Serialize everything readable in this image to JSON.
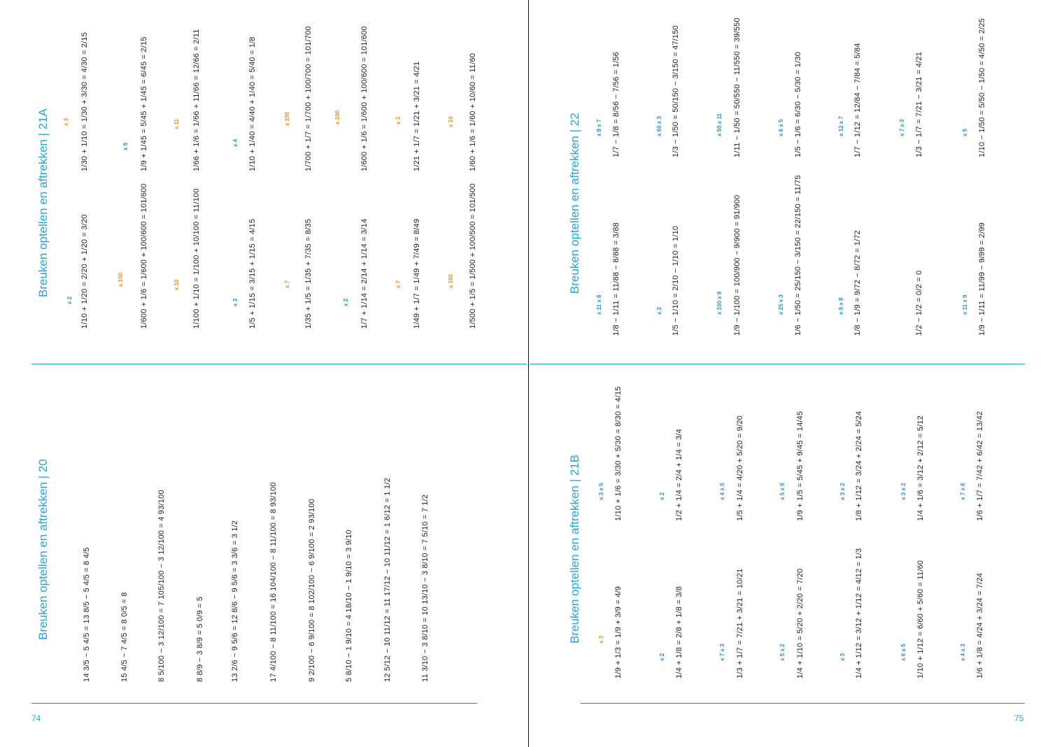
{
  "page_numbers": {
    "left": "74",
    "right": "75"
  },
  "sections": {
    "s21A": {
      "title": "Breuken optellen en aftrekken  |  21A"
    },
    "s20": {
      "title": "Breuken optellen en aftrekken  |  20"
    },
    "s22": {
      "title": "Breuken optellen en aftrekken  |  22"
    },
    "s21B": {
      "title": "Breuken optellen en aftrekken  |  21B"
    }
  },
  "columns": {
    "s21A_top": [
      "1/30 + 1/10 = 1/30 + 3/30 = 4/30 = 2/15",
      "1/9 + 1/45 = 5/45 + 1/45 = 6/45 = 2/15",
      "1/66 + 1/6 = 1/66 + 11/66 = 12/66 = 2/11",
      "1/10 + 1/40 = 4/40 + 1/40 = 5/40 = 1/8",
      "1/700 + 1/7 = 1/700 + 100/700 = 101/700",
      "1/600 + 1/6 = 1/600 + 100/600 = 101/600",
      "1/21 + 1/7 = 1/21 + 3/21 = 4/21",
      "1/60 + 1/6 = 1/60 + 10/60 = 11/60"
    ],
    "s21A_bottom": [
      "1/10 + 1/20 = 2/20 + 1/20 = 3/20",
      "1/600 + 1/6 = 1/600 + 100/600 = 101/600",
      "1/100 + 1/10 = 1/100 + 10/100 = 11/100",
      "1/5 + 1/15 = 3/15 + 1/15 = 4/15",
      "1/35 + 1/5 = 1/35 + 7/35 = 8/35",
      "1/7 + 1/14 = 2/14 + 1/14 = 3/14",
      "1/49 + 1/7 = 1/49 + 7/49 = 8/49",
      "1/500 + 1/5 = 1/500 + 100/500 = 101/500"
    ],
    "s20": [
      "14 3/5 − 5 4/5 = 13 8/5 − 5 4/5 = 8 4/5",
      "15 4/5 − 7 4/5 = 8 0/5 = 8",
      "8 5/100 − 3 12/100 = 7 105/100 − 3 12/100 = 4 93/100",
      "8 8/9 − 3 8/9 = 5 0/9 = 5",
      "13 2/6 − 9 5/6 = 12 8/6 − 9 5/6 = 3 3/6 = 3 1/2",
      "17 4/100 − 8 11/100 = 16 104/100 − 8 11/100 = 8 93/100",
      "9 2/100 − 6 9/100 = 8 102/100 − 6 9/100 = 2 93/100",
      "5 8/10 − 1 9/10 = 4 18/10 − 1 9/10 = 3 9/10",
      "12 5/12 − 10 11/12 = 11 17/12 − 10 11/12 = 1 6/12 = 1 1/2",
      "11 3/10 − 3 8/10 = 10 13/10 − 3 8/10 = 7 5/10 = 7 1/2"
    ],
    "s22_top": [
      "1/7 − 1/8 = 8/56 − 7/56 = 1/56",
      "1/3 − 1/50 = 50/150 − 3/150 = 47/150",
      "1/11 − 1/50 = 50/550 − 11/550 = 39/550",
      "1/5 − 1/6 = 6/30 − 5/30 = 1/30",
      "1/7 − 1/12 = 12/84 − 7/84 = 5/84",
      "1/3 − 1/7 = 7/21 − 3/21 = 4/21",
      "1/10 − 1/50 = 5/50 − 1/50 = 4/50 = 2/25"
    ],
    "s22_bottom": [
      "1/8 − 1/11 = 11/88 − 8/88 = 3/88",
      "1/5 − 1/10 = 2/10 − 1/10 = 1/10",
      "1/9 − 1/100 = 100/900 − 9/900 = 91/900",
      "1/6 − 1/50 = 25/150 − 3/150 = 22/150 = 11/75",
      "1/8 − 1/9 = 9/72 − 8/72 = 1/72",
      "1/2 − 1/2 = 0/2 = 0",
      "1/9 − 1/11 = 11/99 − 9/99 = 2/99"
    ],
    "s21B_top": [
      "1/10 + 1/6 = 3/30 + 5/30 = 8/30 = 4/15",
      "1/2 + 1/4 = 2/4 + 1/4 = 3/4",
      "1/5 + 1/4 = 4/20 + 5/20 = 9/20",
      "1/9 + 1/5 = 5/45 + 9/45 = 14/45",
      "1/8 + 1/12 = 3/24 + 2/24 = 5/24",
      "1/4 + 1/6 = 3/12 + 2/12 = 5/12",
      "1/6 + 1/7 = 7/42 + 6/42 = 13/42"
    ],
    "s21B_bottom": [
      "1/9 + 1/3 = 1/9 + 3/9 = 4/9",
      "1/4 + 1/8 = 2/8 + 1/8 = 3/8",
      "1/3 + 1/7 = 7/21 + 3/21 = 10/21",
      "1/4 + 1/10 = 5/20 + 2/20 = 7/20",
      "1/4 + 1/12 = 3/12 + 1/12 = 4/12 = 1/3",
      "1/10 + 1/12 = 6/60 + 5/60 = 11/60",
      "1/6 + 1/8 = 4/24 + 3/24 = 7/24"
    ]
  },
  "multipliers": {
    "s21A_top": [
      "x 3",
      "x 5",
      "x 11",
      "x 4",
      "x 100",
      "x 100",
      "x 3",
      "x 10"
    ],
    "s21A_bottom": [
      "x 2",
      "x 100",
      "x 10",
      "x 3",
      "x 7",
      "x 2",
      "x 7",
      "x 100"
    ],
    "s22_top": [
      "x 8  x 7",
      "x 50  x 3",
      "x 50  x 11",
      "x 6  x 5",
      "x 12  x 7",
      "x 7  x 3",
      "x 5"
    ],
    "s22_bottom": [
      "x 11  x 8",
      "x 2",
      "x 100  x 9",
      "x 25  x 3",
      "x 9  x 8",
      "",
      "x 11  x 9"
    ],
    "s21B_top": [
      "x 3  x 5",
      "x 2",
      "x 4  x 5",
      "x 5  x 9",
      "x 3  x 2",
      "x 3  x 2",
      "x 7  x 6"
    ],
    "s21B_bottom": [
      "x 3",
      "x 2",
      "x 7  x 3",
      "x 5  x 2",
      "x 3",
      "x 6  x 5",
      "x 4  x 3"
    ]
  }
}
